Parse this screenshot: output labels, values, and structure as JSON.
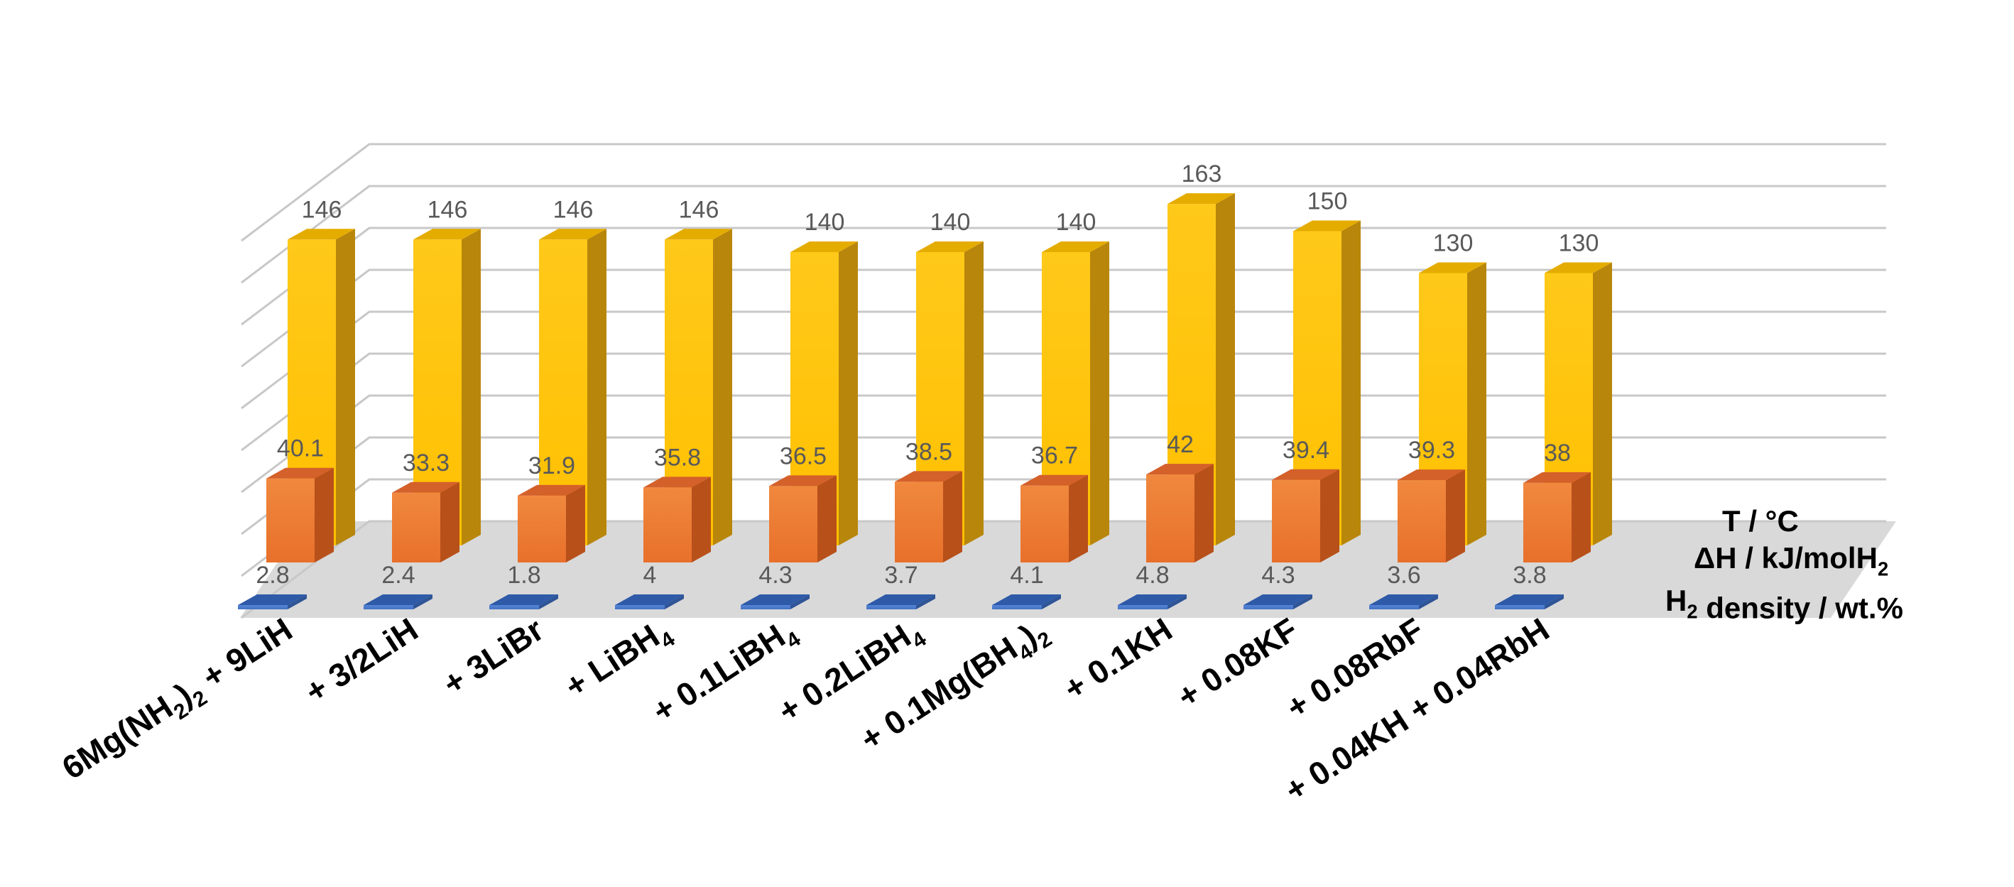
{
  "chart_data": {
    "type": "bar",
    "categories": [
      "6Mg(NH2)2 + 9LiH",
      "+ 3/2LiH",
      "+ 3LiBr",
      "+ LiBH4",
      "+ 0.1LiBH4",
      "+ 0.2LiBH4",
      "+ 0.1Mg(BH4)2",
      "+ 0.1KH",
      "+ 0.08KF",
      "+ 0.08RbF",
      "+ 0.04KH + 0.04RbH"
    ],
    "series": [
      {
        "name": "T / °C",
        "values": [
          146,
          146,
          146,
          146,
          140,
          140,
          140,
          163,
          150,
          130,
          130
        ],
        "labels": [
          "146",
          "146",
          "146",
          "146",
          "140",
          "140",
          "140",
          "163",
          "150",
          "130",
          "130"
        ],
        "color": "#FFC000"
      },
      {
        "name": "ΔH / kJ/molH2",
        "values": [
          40.1,
          33.3,
          31.9,
          35.8,
          36.5,
          38.5,
          36.7,
          42,
          39.4,
          39.3,
          38
        ],
        "labels": [
          "40.1",
          "33.3",
          "31.9",
          "35.8",
          "36.5",
          "38.5",
          "36.7",
          "42",
          "39.4",
          "39.3",
          "38"
        ],
        "color": "#ED7D31"
      },
      {
        "name": "H2 density / wt.%",
        "values": [
          2.8,
          2.4,
          1.8,
          4,
          4.3,
          3.7,
          4.1,
          4.8,
          4.3,
          3.6,
          3.8
        ],
        "labels": [
          "2.8",
          "2.4",
          "1.8",
          "4",
          "4.3",
          "3.7",
          "4.1",
          "4.8",
          "4.3",
          "3.6",
          "3.8"
        ],
        "color": "#4472C4"
      }
    ],
    "ylim": [
      0,
      180
    ],
    "grid": true,
    "legend_position": "right (series labels beside the depth rows)"
  }
}
